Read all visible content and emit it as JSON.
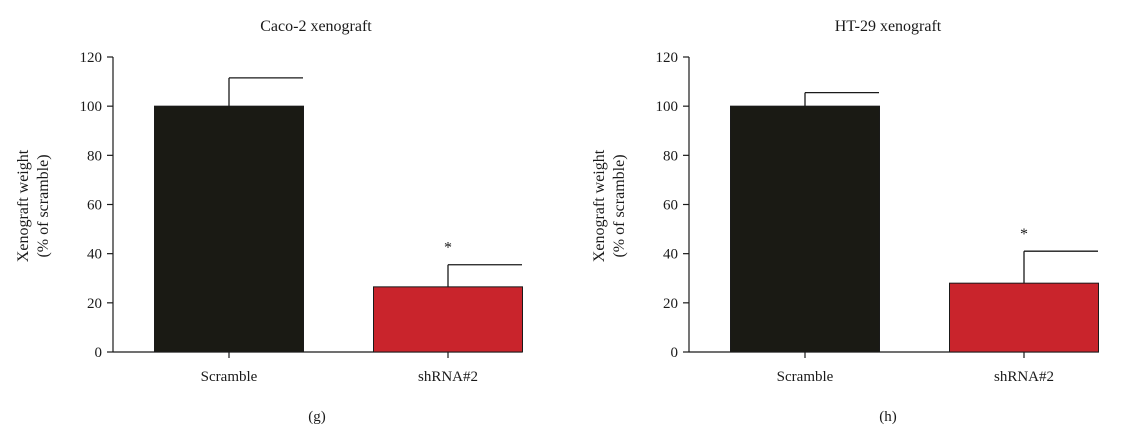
{
  "chart_data": [
    {
      "type": "bar",
      "title": "Caco-2 xenograft",
      "ylabel_line1": "Xenograft weight",
      "ylabel_line2": "(% of scramble)",
      "xlabel": "",
      "panel_label": "(g)",
      "categories": [
        "Scramble",
        "shRNA#2"
      ],
      "values": [
        100,
        26.5
      ],
      "errors": [
        11.5,
        9
      ],
      "significance": [
        "",
        "*"
      ],
      "colors": [
        "#1a1a14",
        "#c9242c"
      ],
      "ylim": [
        0,
        120
      ],
      "yticks": [
        0,
        20,
        40,
        60,
        80,
        100,
        120
      ],
      "grid": false
    },
    {
      "type": "bar",
      "title": "HT-29 xenograft",
      "ylabel_line1": "Xenograft weight",
      "ylabel_line2": "(% of scramble)",
      "xlabel": "",
      "panel_label": "(h)",
      "categories": [
        "Scramble",
        "shRNA#2"
      ],
      "values": [
        100,
        28
      ],
      "errors": [
        5.5,
        13
      ],
      "significance": [
        "",
        "*"
      ],
      "colors": [
        "#1a1a14",
        "#c9242c"
      ],
      "ylim": [
        0,
        120
      ],
      "yticks": [
        0,
        20,
        40,
        60,
        80,
        100,
        120
      ],
      "grid": false
    }
  ]
}
